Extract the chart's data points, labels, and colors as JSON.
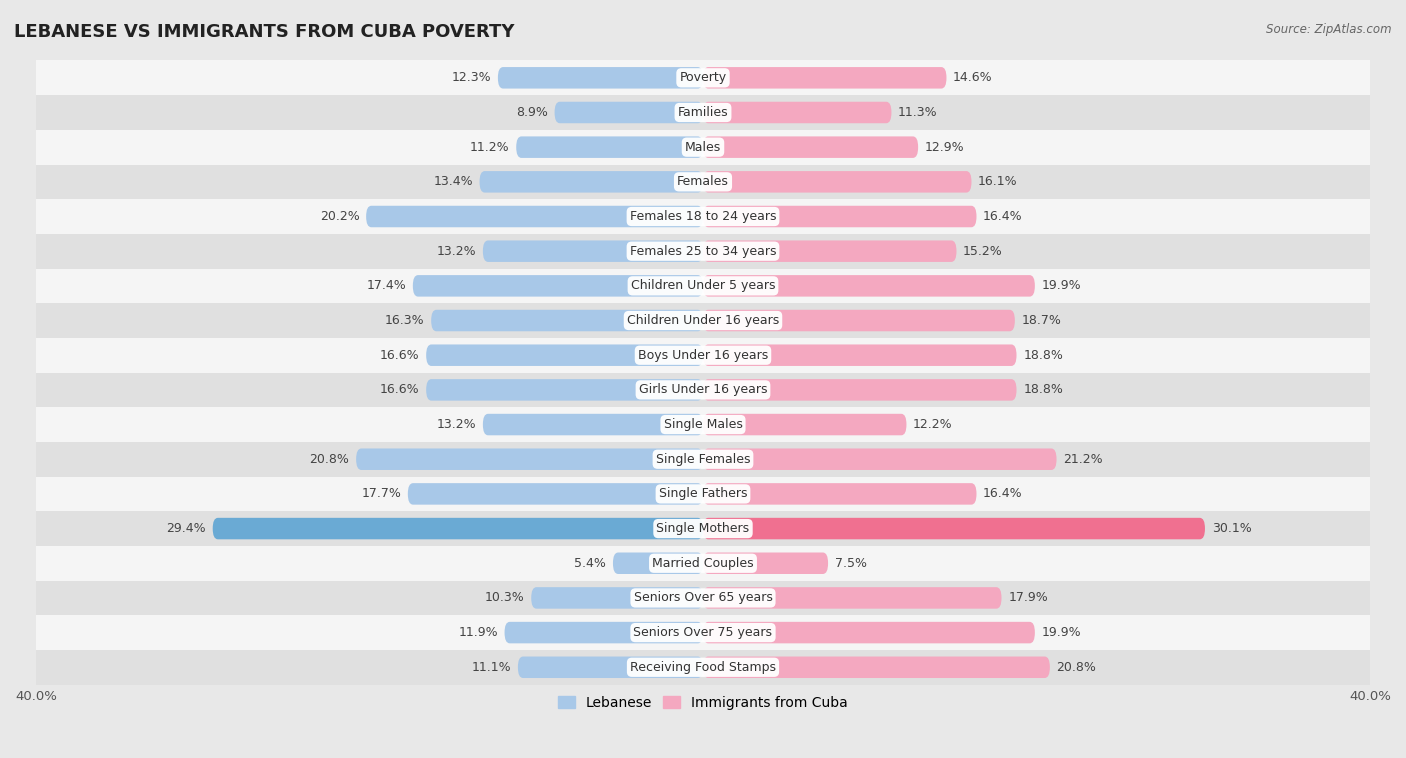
{
  "title": "LEBANESE VS IMMIGRANTS FROM CUBA POVERTY",
  "source": "Source: ZipAtlas.com",
  "categories": [
    "Poverty",
    "Families",
    "Males",
    "Females",
    "Females 18 to 24 years",
    "Females 25 to 34 years",
    "Children Under 5 years",
    "Children Under 16 years",
    "Boys Under 16 years",
    "Girls Under 16 years",
    "Single Males",
    "Single Females",
    "Single Fathers",
    "Single Mothers",
    "Married Couples",
    "Seniors Over 65 years",
    "Seniors Over 75 years",
    "Receiving Food Stamps"
  ],
  "lebanese": [
    12.3,
    8.9,
    11.2,
    13.4,
    20.2,
    13.2,
    17.4,
    16.3,
    16.6,
    16.6,
    13.2,
    20.8,
    17.7,
    29.4,
    5.4,
    10.3,
    11.9,
    11.1
  ],
  "cuba": [
    14.6,
    11.3,
    12.9,
    16.1,
    16.4,
    15.2,
    19.9,
    18.7,
    18.8,
    18.8,
    12.2,
    21.2,
    16.4,
    30.1,
    7.5,
    17.9,
    19.9,
    20.8
  ],
  "lebanese_color": "#a8c8e8",
  "cuba_color": "#f4a8c0",
  "lebanese_highlight": "#6aaad4",
  "cuba_highlight": "#f07090",
  "background_color": "#e8e8e8",
  "row_color_white": "#f5f5f5",
  "row_color_gray": "#e0e0e0",
  "xlim": 40.0,
  "bar_height": 0.62,
  "label_fontsize": 9.0,
  "category_fontsize": 9.0,
  "title_fontsize": 13
}
